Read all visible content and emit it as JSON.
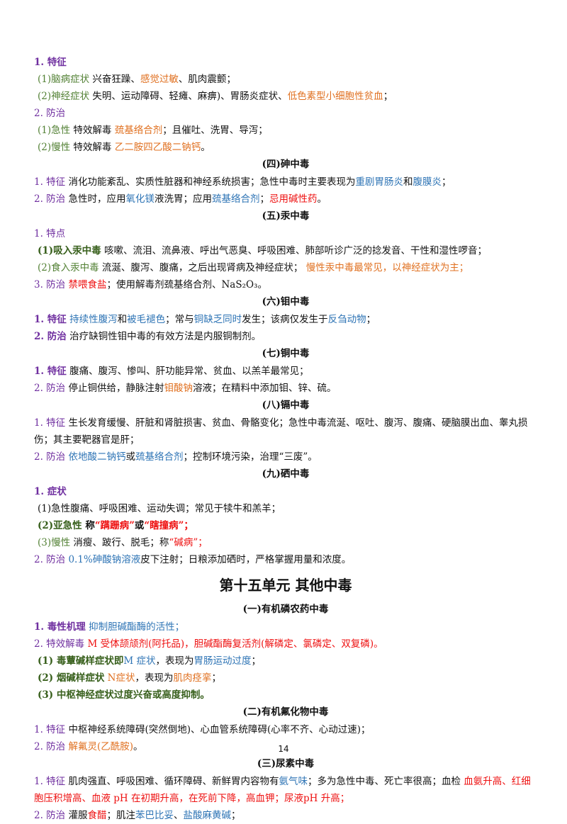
{
  "lines": [
    {
      "t": "l",
      "ind": false,
      "segs": [
        {
          "c": "purple",
          "b": true,
          "t": "1. 特征"
        }
      ]
    },
    {
      "t": "l",
      "ind": true,
      "segs": [
        {
          "c": "green",
          "t": "(1)脑病症状"
        },
        {
          "t": " 兴奋狂躁、"
        },
        {
          "c": "orange",
          "t": "感觉过敏"
        },
        {
          "t": "、肌肉震颤；"
        }
      ]
    },
    {
      "t": "l",
      "ind": true,
      "segs": [
        {
          "c": "green",
          "t": "(2)神经症状"
        },
        {
          "t": " 失明、运动障碍、轻瘫、麻痹)、胃肠炎症状、"
        },
        {
          "c": "orange",
          "t": "低色素型小细胞性贫血"
        },
        {
          "t": "；"
        }
      ]
    },
    {
      "t": "l",
      "ind": false,
      "segs": [
        {
          "c": "purple",
          "t": "2. 防治"
        }
      ]
    },
    {
      "t": "l",
      "ind": true,
      "segs": [
        {
          "c": "green",
          "t": "(1)急性"
        },
        {
          "t": " 特效解毒 "
        },
        {
          "c": "orange",
          "t": "巯基络合剂"
        },
        {
          "t": "；且催吐、洗胃、导泻；"
        }
      ]
    },
    {
      "t": "l",
      "ind": true,
      "segs": [
        {
          "c": "green",
          "t": "(2)慢性"
        },
        {
          "t": " 特效解毒 "
        },
        {
          "c": "orange",
          "t": "乙二胺四乙酸二钠钙"
        },
        {
          "t": "。"
        }
      ]
    },
    {
      "t": "h",
      "text": "(四)砷中毒"
    },
    {
      "t": "l",
      "ind": false,
      "segs": [
        {
          "c": "purple",
          "t": "1. 特征"
        },
        {
          "t": " 消化功能紊乱、实质性脏器和神经系统损害；急性中毒时主要表现为"
        },
        {
          "c": "blue",
          "t": "重剧胃肠炎"
        },
        {
          "t": "和"
        },
        {
          "c": "blue",
          "t": "腹膜炎"
        },
        {
          "t": "；"
        }
      ]
    },
    {
      "t": "l",
      "ind": false,
      "segs": [
        {
          "c": "purple",
          "t": "2. 防治"
        },
        {
          "t": " 急性时，应用"
        },
        {
          "c": "blue",
          "t": "氧化镁"
        },
        {
          "t": "液洗胃；应用"
        },
        {
          "c": "blue",
          "t": "巯基络合剂"
        },
        {
          "t": "；"
        },
        {
          "c": "red",
          "t": "忌用碱性药"
        },
        {
          "t": "。"
        }
      ]
    },
    {
      "t": "h",
      "text": "(五)汞中毒"
    },
    {
      "t": "l",
      "ind": false,
      "segs": [
        {
          "c": "purple",
          "t": "1. 特点"
        }
      ]
    },
    {
      "t": "l",
      "ind": true,
      "segs": [
        {
          "c": "greenb",
          "t": "(1)吸入汞中毒"
        },
        {
          "t": " 咳嗽、流泪、流鼻液、呼出气恶臭、呼吸困难、肺部听诊广泛的捻发音、干性和湿性啰音；"
        }
      ]
    },
    {
      "t": "l",
      "ind": true,
      "segs": [
        {
          "c": "green",
          "t": "(2)食入汞中毒"
        },
        {
          "t": " 流涎、腹泻、腹痛，之后出现肾病及神经症状； "
        },
        {
          "c": "orange",
          "t": "慢性汞中毒最常见，以神经症状为主；"
        }
      ]
    },
    {
      "t": "l",
      "ind": false,
      "segs": [
        {
          "c": "purple",
          "t": "3. 防治"
        },
        {
          "t": " "
        },
        {
          "c": "red",
          "t": "禁喂食盐"
        },
        {
          "t": "；使用解毒剂巯基络合剂、NaS₂O₃。"
        }
      ]
    },
    {
      "t": "h",
      "text": "(六)钼中毒"
    },
    {
      "t": "l",
      "ind": false,
      "segs": [
        {
          "c": "purple",
          "b": true,
          "t": "1. 特征"
        },
        {
          "t": " "
        },
        {
          "c": "blue",
          "t": "持续性腹泻"
        },
        {
          "t": "和"
        },
        {
          "c": "blue",
          "t": "被毛褪色"
        },
        {
          "t": "；常与"
        },
        {
          "c": "blue",
          "t": "铜缺乏同时"
        },
        {
          "t": "发生；该病仅发生于"
        },
        {
          "c": "blue",
          "t": "反刍动物"
        },
        {
          "t": "；"
        }
      ]
    },
    {
      "t": "l",
      "ind": false,
      "segs": [
        {
          "c": "purple",
          "b": true,
          "t": "2. 防治"
        },
        {
          "t": " 治疗缺铜性钼中毒的有效方法是内服铜制剂。"
        }
      ]
    },
    {
      "t": "h",
      "text": "(七)铜中毒"
    },
    {
      "t": "l",
      "ind": false,
      "segs": [
        {
          "c": "purple",
          "b": true,
          "t": "1. 特征"
        },
        {
          "t": " 腹痛、腹泻、惨叫、肝功能异常、贫血、以羔羊最常见；"
        }
      ]
    },
    {
      "t": "l",
      "ind": false,
      "segs": [
        {
          "c": "purple",
          "t": "2. 防治"
        },
        {
          "t": " 停止铜供给，静脉注射"
        },
        {
          "c": "orange",
          "t": "钼酸钠"
        },
        {
          "t": "溶液；在精料中添加钼、锌、硫。"
        }
      ]
    },
    {
      "t": "h",
      "text": "(八)镉中毒"
    },
    {
      "t": "l",
      "ind": false,
      "wrap": true,
      "segs": [
        {
          "c": "purple",
          "t": "1. 特征"
        },
        {
          "t": " 生长发育缓慢、肝脏和肾脏损害、贫血、骨骼变化；急性中毒流涎、呕吐、腹泻、腹痛、硬脑膜出血、睾丸损伤；其主要靶器官是肝；"
        }
      ]
    },
    {
      "t": "l",
      "ind": false,
      "segs": [
        {
          "c": "purple",
          "t": "2. 防治"
        },
        {
          "t": " "
        },
        {
          "c": "blue",
          "t": "依地酸二钠钙"
        },
        {
          "t": "或"
        },
        {
          "c": "blue",
          "t": "巯基络合剂"
        },
        {
          "t": "；控制环境污染，治理“三废”。"
        }
      ]
    },
    {
      "t": "h",
      "text": "(九)硒中毒"
    },
    {
      "t": "l",
      "ind": false,
      "segs": [
        {
          "c": "purple",
          "b": true,
          "t": "1. 症状"
        }
      ]
    },
    {
      "t": "l",
      "ind": true,
      "segs": [
        {
          "t": "(1)急性腹痛、呼吸困难、运动失调；常见于犊牛和羔羊；"
        }
      ]
    },
    {
      "t": "l",
      "ind": true,
      "segs": [
        {
          "c": "greenb",
          "t": "(2)亚急性"
        },
        {
          "b": true,
          "t": " 称"
        },
        {
          "c": "red",
          "b": true,
          "t": "“蹒跚病”"
        },
        {
          "b": true,
          "t": "或"
        },
        {
          "c": "red",
          "b": true,
          "t": "“瞎撞病”；"
        }
      ]
    },
    {
      "t": "l",
      "ind": true,
      "segs": [
        {
          "c": "green",
          "t": "(3)慢性"
        },
        {
          "t": " 消瘦、跛行、脱毛；称"
        },
        {
          "c": "red",
          "t": "“碱病”；"
        }
      ]
    },
    {
      "t": "l",
      "ind": false,
      "segs": [
        {
          "c": "purple",
          "t": "2. 防治"
        },
        {
          "t": " "
        },
        {
          "c": "blue",
          "t": "0.1%砷酸钠溶液"
        },
        {
          "t": "皮下注射；日粮添加硒时，严格掌握用量和浓度。"
        }
      ]
    },
    {
      "t": "uh",
      "text": "第十五单元    其他中毒"
    },
    {
      "t": "h",
      "text": "(一)有机磷农药中毒"
    },
    {
      "t": "l",
      "ind": false,
      "segs": [
        {
          "c": "purple",
          "b": true,
          "t": "1. 毒性机理"
        },
        {
          "t": " "
        },
        {
          "c": "blue",
          "t": "抑制胆碱酯酶的活性；"
        }
      ]
    },
    {
      "t": "l",
      "ind": false,
      "segs": [
        {
          "c": "purple",
          "t": "2. 特效解毒 "
        },
        {
          "c": "red",
          "t": "M 受体颉颃剂(阿托品)，胆碱酯酶复活剂(解磷定、氯磷定、双复磷)。"
        }
      ]
    },
    {
      "t": "l",
      "ind": true,
      "segs": [
        {
          "c": "greenb",
          "t": "(1) 毒蕈碱样症状即"
        },
        {
          "c": "blue",
          "t": "M 症状"
        },
        {
          "t": "，表现为"
        },
        {
          "c": "blue",
          "t": "胃肠运动过度"
        },
        {
          "t": "；"
        }
      ]
    },
    {
      "t": "l",
      "ind": true,
      "segs": [
        {
          "c": "greenb",
          "t": "(2) 烟碱样症状"
        },
        {
          "t": " "
        },
        {
          "c": "orange",
          "t": "N症状"
        },
        {
          "t": "，表现为"
        },
        {
          "c": "orange",
          "t": "肌肉痉挛"
        },
        {
          "t": "；"
        }
      ]
    },
    {
      "t": "l",
      "ind": true,
      "segs": [
        {
          "c": "greenb",
          "t": "(3) 中枢神经症状过度兴奋或高度抑制。"
        }
      ]
    },
    {
      "t": "h",
      "text": "(二)有机氟化物中毒"
    },
    {
      "t": "l",
      "ind": false,
      "segs": [
        {
          "c": "purple",
          "t": "1. 特征"
        },
        {
          "t": " 中枢神经系统障碍(突然倒地)、心血管系统障碍(心率不齐、心动过速)；"
        }
      ]
    },
    {
      "t": "l",
      "ind": false,
      "segs": [
        {
          "c": "purple",
          "t": "2. 防治"
        },
        {
          "t": " "
        },
        {
          "c": "orange",
          "t": "解氟灵(乙酰胺)"
        },
        {
          "t": "。"
        }
      ]
    },
    {
      "t": "h",
      "text": "(三)尿素中毒"
    },
    {
      "t": "l",
      "ind": false,
      "wrap": true,
      "segs": [
        {
          "c": "purple",
          "t": "1. 特征"
        },
        {
          "t": " 肌肉强直、呼吸困难、循环障碍、新鲜胃内容物有"
        },
        {
          "c": "blue",
          "t": "氨气味"
        },
        {
          "t": "；多为急性中毒、死亡率很高；血检 "
        },
        {
          "c": "red",
          "t": "血氨升高、红细胞压积增高、血液 pH 在初期升高，在死前下降，高血钾；尿液pH 升高；"
        }
      ]
    },
    {
      "t": "l",
      "ind": false,
      "segs": [
        {
          "c": "purple",
          "t": "2. 防治"
        },
        {
          "t": " 灌服"
        },
        {
          "c": "red",
          "t": "食醋"
        },
        {
          "t": "；肌注"
        },
        {
          "c": "blue",
          "t": "苯巴比妥"
        },
        {
          "t": "、"
        },
        {
          "c": "blue",
          "t": "盐酸麻黄碱"
        },
        {
          "t": "；"
        }
      ]
    }
  ],
  "page_number": "14"
}
